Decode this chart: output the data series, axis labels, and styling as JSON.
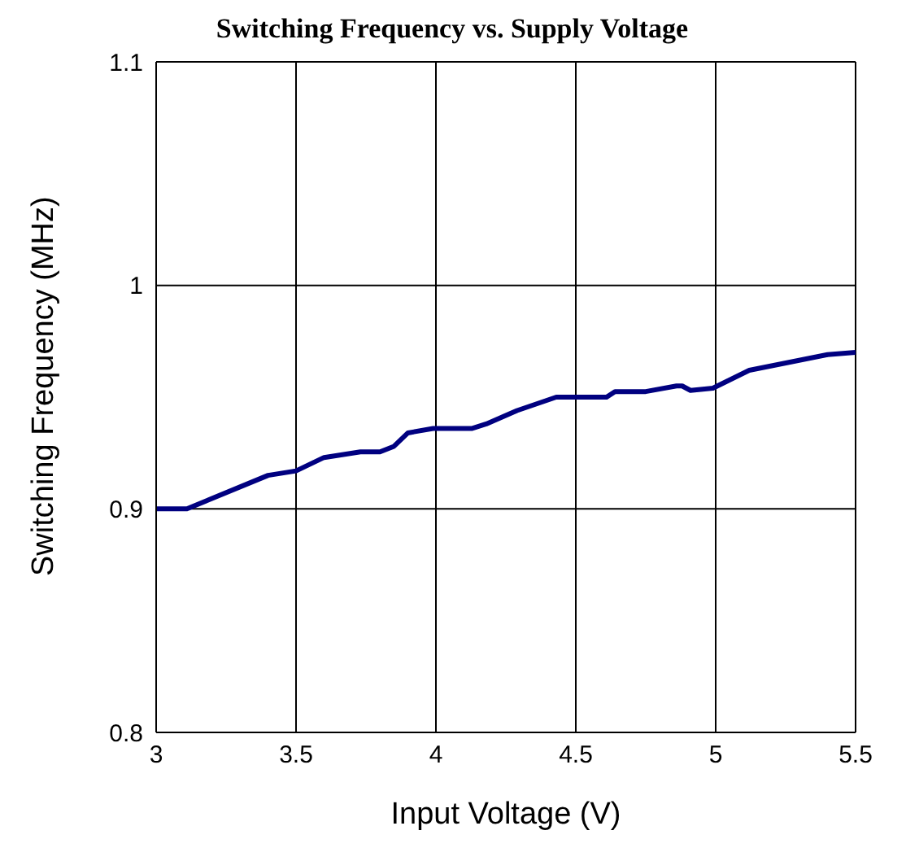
{
  "chart_data": {
    "type": "line",
    "title": "Switching Frequency vs. Supply Voltage",
    "xlabel": "Input Voltage (V)",
    "ylabel": "Switching Frequency (MHz)",
    "x": [
      3,
      3.11,
      3.4,
      3.5,
      3.6,
      3.73,
      3.8,
      3.85,
      3.9,
      3.99,
      4.13,
      4.18,
      4.29,
      4.43,
      4.5,
      4.61,
      4.64,
      4.75,
      4.86,
      4.88,
      4.91,
      4.99,
      5.12,
      5.28,
      5.4,
      5.5
    ],
    "series": [
      {
        "color": "#000080",
        "values": [
          0.9,
          0.9,
          0.915,
          0.917,
          0.923,
          0.9255,
          0.9255,
          0.928,
          0.934,
          0.936,
          0.936,
          0.938,
          0.944,
          0.95,
          0.95,
          0.95,
          0.9525,
          0.9525,
          0.955,
          0.955,
          0.953,
          0.954,
          0.962,
          0.966,
          0.969,
          0.97
        ]
      }
    ],
    "xlim": [
      3,
      5.5
    ],
    "xticks": [
      3,
      3.5,
      4,
      4.5,
      5,
      5.5
    ],
    "ylim": [
      0.8,
      1.1
    ],
    "yticks": [
      0.8,
      0.9,
      1,
      1.1
    ],
    "grid": true,
    "legend": false,
    "marker": "none",
    "line_style": "solid"
  }
}
